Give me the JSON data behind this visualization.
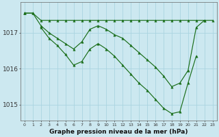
{
  "background_color": "#cce8f0",
  "grid_color": "#aad4e0",
  "line_color": "#1a6e1a",
  "title": "Graphe pression niveau de la mer (hPa)",
  "yticks": [
    1015,
    1016,
    1017
  ],
  "ylim": [
    1014.55,
    1017.85
  ],
  "xlim": [
    -0.5,
    23.5
  ],
  "hours": [
    0,
    1,
    2,
    3,
    4,
    5,
    6,
    7,
    8,
    9,
    10,
    11,
    12,
    13,
    14,
    15,
    16,
    17,
    18,
    19,
    20,
    21,
    22,
    23
  ],
  "line_flat": [
    1017.55,
    1017.55,
    1017.35,
    1017.35,
    1017.35,
    1017.35,
    1017.35,
    1017.35,
    1017.35,
    1017.35,
    1017.35,
    1017.35,
    1017.35,
    1017.35,
    1017.35,
    1017.35,
    1017.35,
    1017.35,
    1017.35,
    1017.35,
    1017.35,
    1017.35,
    1017.35,
    1017.35
  ],
  "line_mid": [
    1017.55,
    1017.55,
    1017.2,
    1017.0,
    1016.85,
    1016.7,
    1016.55,
    1016.75,
    1017.1,
    1017.2,
    1017.1,
    1016.95,
    1016.85,
    1016.65,
    1016.45,
    1016.25,
    1016.05,
    1015.8,
    1015.5,
    1015.6,
    1015.95,
    1017.15,
    1017.35,
    null
  ],
  "line_low": [
    1017.55,
    null,
    1017.15,
    1016.85,
    1016.65,
    1016.4,
    1016.1,
    1016.2,
    1016.55,
    1016.7,
    1016.55,
    1016.35,
    1016.1,
    1015.85,
    1015.6,
    1015.4,
    1015.15,
    1014.9,
    1014.75,
    1014.8,
    1015.6,
    1016.35,
    null,
    null
  ]
}
